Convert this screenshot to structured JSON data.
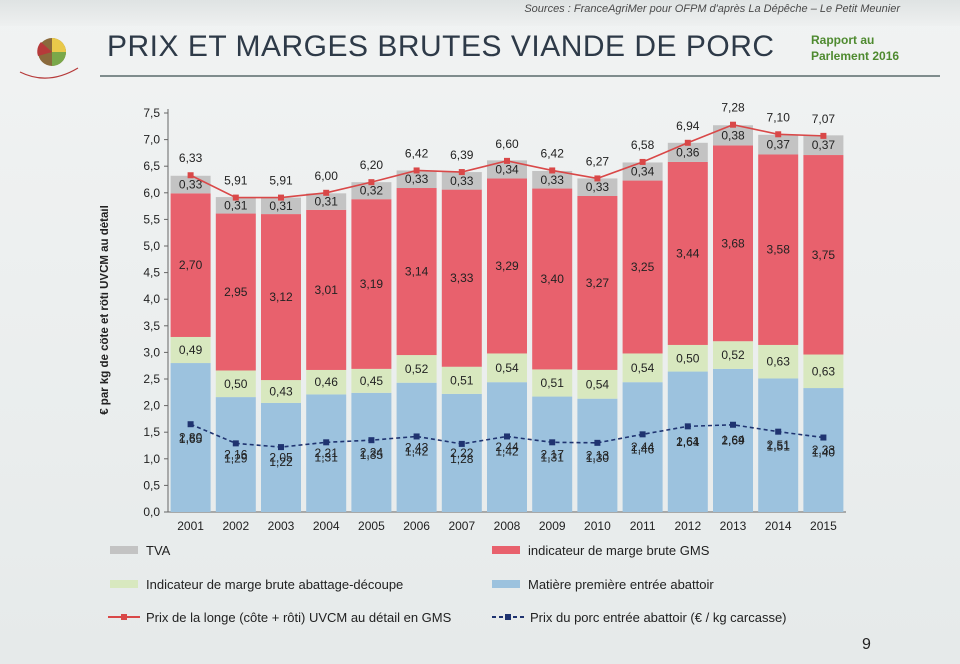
{
  "header": {
    "sources": "Sources : FranceAgriMer pour OFPM d'après La Dépêche – Le Petit Meunier",
    "title": "PRIX ET MARGES BRUTES VIANDE DE PORC",
    "rapport_line1": "Rapport au",
    "rapport_line2": "Parlement 2016"
  },
  "page_number": "9",
  "colors": {
    "tva": "#c3c3c3",
    "marge_gms": "#e8616d",
    "marge_abattage": "#d8e8bf",
    "matiere": "#9cc2de",
    "prix_longe": "#d94848",
    "prix_porc": "#1f3370"
  },
  "chart_data": {
    "type": "bar",
    "stacked": true,
    "ylabel": "€ par kg de côte et rôti UVCM au détail",
    "ylim": [
      0,
      7.5
    ],
    "yticks": [
      "0,0",
      "0,5",
      "1,0",
      "1,5",
      "2,0",
      "2,5",
      "3,0",
      "3,5",
      "4,0",
      "4,5",
      "5,0",
      "5,5",
      "6,0",
      "6,5",
      "7,0",
      "7,5"
    ],
    "categories": [
      "2001",
      "2002",
      "2003",
      "2004",
      "2005",
      "2006",
      "2007",
      "2008",
      "2009",
      "2010",
      "2011",
      "2012",
      "2013",
      "2014",
      "2015"
    ],
    "series": [
      {
        "name": "Matière première entrée abattoir",
        "color": "#9cc2de",
        "values": [
          2.8,
          2.16,
          2.05,
          2.21,
          2.24,
          2.43,
          2.22,
          2.44,
          2.17,
          2.13,
          2.44,
          2.64,
          2.69,
          2.51,
          2.33
        ],
        "labels": [
          "2,80",
          "2,16",
          "2,05",
          "2,21",
          "2,24",
          "2,43",
          "2,22",
          "2,44",
          "2,17",
          "2,13",
          "2,44",
          "2,64",
          "2,69",
          "2,51",
          "2,33"
        ]
      },
      {
        "name": "Indicateur de marge brute abattage-découpe",
        "color": "#d8e8bf",
        "values": [
          0.49,
          0.5,
          0.43,
          0.46,
          0.45,
          0.52,
          0.51,
          0.54,
          0.51,
          0.54,
          0.54,
          0.5,
          0.52,
          0.63,
          0.63
        ],
        "labels": [
          "0,49",
          "0,50",
          "0,43",
          "0,46",
          "0,45",
          "0,52",
          "0,51",
          "0,54",
          "0,51",
          "0,54",
          "0,54",
          "0,50",
          "0,52",
          "0,63",
          "0,63"
        ]
      },
      {
        "name": "indicateur de marge brute GMS",
        "color": "#e8616d",
        "values": [
          2.7,
          2.95,
          3.12,
          3.01,
          3.19,
          3.14,
          3.33,
          3.29,
          3.4,
          3.27,
          3.25,
          3.44,
          3.68,
          3.58,
          3.75
        ],
        "labels": [
          "2,70",
          "2,95",
          "3,12",
          "3,01",
          "3,19",
          "3,14",
          "3,33",
          "3,29",
          "3,40",
          "3,27",
          "3,25",
          "3,44",
          "3,68",
          "3,58",
          "3,75"
        ]
      },
      {
        "name": "TVA",
        "color": "#c3c3c3",
        "values": [
          0.33,
          0.31,
          0.31,
          0.31,
          0.32,
          0.33,
          0.33,
          0.34,
          0.33,
          0.33,
          0.34,
          0.36,
          0.38,
          0.37,
          0.37
        ],
        "labels": [
          "0,33",
          "0,31",
          "0,31",
          "0,31",
          "0,32",
          "0,33",
          "0,33",
          "0,34",
          "0,33",
          "0,33",
          "0,34",
          "0,36",
          "0,38",
          "0,37",
          "0,37"
        ]
      }
    ],
    "lines": [
      {
        "name": "Prix de la longe (côte + rôti)  UVCM au détail en GMS",
        "color": "#d94848",
        "style": "solid",
        "values": [
          6.33,
          5.91,
          5.91,
          6.0,
          6.2,
          6.42,
          6.39,
          6.6,
          6.42,
          6.27,
          6.58,
          6.94,
          7.28,
          7.1,
          7.07
        ],
        "labels": [
          "6,33",
          "5,91",
          "5,91",
          "6,00",
          "6,20",
          "6,42",
          "6,39",
          "6,60",
          "6,42",
          "6,27",
          "6,58",
          "6,94",
          "7,28",
          "7,10",
          "7,07"
        ]
      },
      {
        "name": "Prix du porc entrée abattoir (€ / kg carcasse)",
        "color": "#1f3370",
        "style": "dashed",
        "values": [
          1.65,
          1.29,
          1.22,
          1.31,
          1.35,
          1.42,
          1.28,
          1.42,
          1.31,
          1.3,
          1.46,
          1.61,
          1.64,
          1.51,
          1.4
        ],
        "labels": [
          "1,65",
          "1,29",
          "1,22",
          "1,31",
          "1,35",
          "1,42",
          "1,28",
          "1,42",
          "1,31",
          "1,30",
          "1,46",
          "1,61",
          "1,64",
          "1,51",
          "1,40"
        ]
      }
    ],
    "legend": {
      "tva": "TVA",
      "marge_gms": "indicateur de marge brute GMS",
      "marge_abattage": "Indicateur de marge brute abattage-découpe",
      "matiere": "Matière première entrée abattoir",
      "prix_longe": "Prix de la longe (côte + rôti)  UVCM au détail en GMS",
      "prix_porc": "Prix du porc entrée abattoir (€ / kg carcasse)"
    },
    "grid": false,
    "legend_position": "bottom"
  }
}
